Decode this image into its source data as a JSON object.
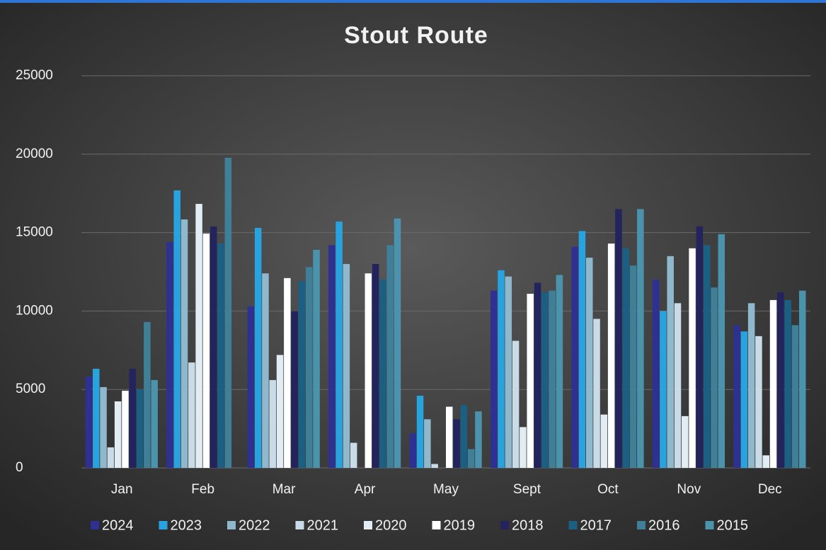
{
  "chart_data": {
    "type": "bar",
    "title": "Stout Route",
    "categories": [
      "Jan",
      "Feb",
      "Mar",
      "Apr",
      "May",
      "Sept",
      "Oct",
      "Nov",
      "Dec"
    ],
    "series": [
      {
        "name": "2024",
        "color": "#2e3192",
        "values": [
          5820,
          14400,
          10300,
          14200,
          2200,
          11300,
          14100,
          12000,
          9100
        ]
      },
      {
        "name": "2023",
        "color": "#29a3e0",
        "values": [
          6320,
          17690,
          15300,
          15700,
          4600,
          12600,
          15100,
          10000,
          8700
        ]
      },
      {
        "name": "2022",
        "color": "#8fb8cc",
        "values": [
          5150,
          15840,
          12400,
          13000,
          3100,
          12200,
          13400,
          13500,
          10500
        ]
      },
      {
        "name": "2021",
        "color": "#c8dbe6",
        "values": [
          1310,
          6720,
          5600,
          1600,
          250,
          8100,
          9500,
          10500,
          8400
        ]
      },
      {
        "name": "2020",
        "color": "#e2edf3",
        "values": [
          4240,
          16830,
          7200,
          null,
          null,
          2600,
          3400,
          3300,
          800
        ]
      },
      {
        "name": "2019",
        "color": "#ffffff",
        "values": [
          4920,
          14940,
          12100,
          12400,
          3900,
          11100,
          14300,
          14000,
          10700
        ]
      },
      {
        "name": "2018",
        "color": "#23235e",
        "values": [
          6320,
          15390,
          10000,
          13000,
          3100,
          11800,
          16500,
          15400,
          11200
        ]
      },
      {
        "name": "2017",
        "color": "#1b5f82",
        "values": [
          5010,
          14310,
          11900,
          12000,
          4000,
          11200,
          14000,
          14200,
          10700
        ]
      },
      {
        "name": "2016",
        "color": "#3f7f97",
        "values": [
          9300,
          19770,
          12800,
          14200,
          1200,
          11300,
          12900,
          11500,
          9100
        ]
      },
      {
        "name": "2015",
        "color": "#4b93ad",
        "values": [
          5600,
          null,
          13900,
          15900,
          3600,
          12300,
          16500,
          14900,
          11300
        ]
      }
    ],
    "ylim": [
      0,
      25000
    ],
    "yticks": [
      0,
      5000,
      10000,
      15000,
      20000,
      25000
    ],
    "grid": true
  }
}
